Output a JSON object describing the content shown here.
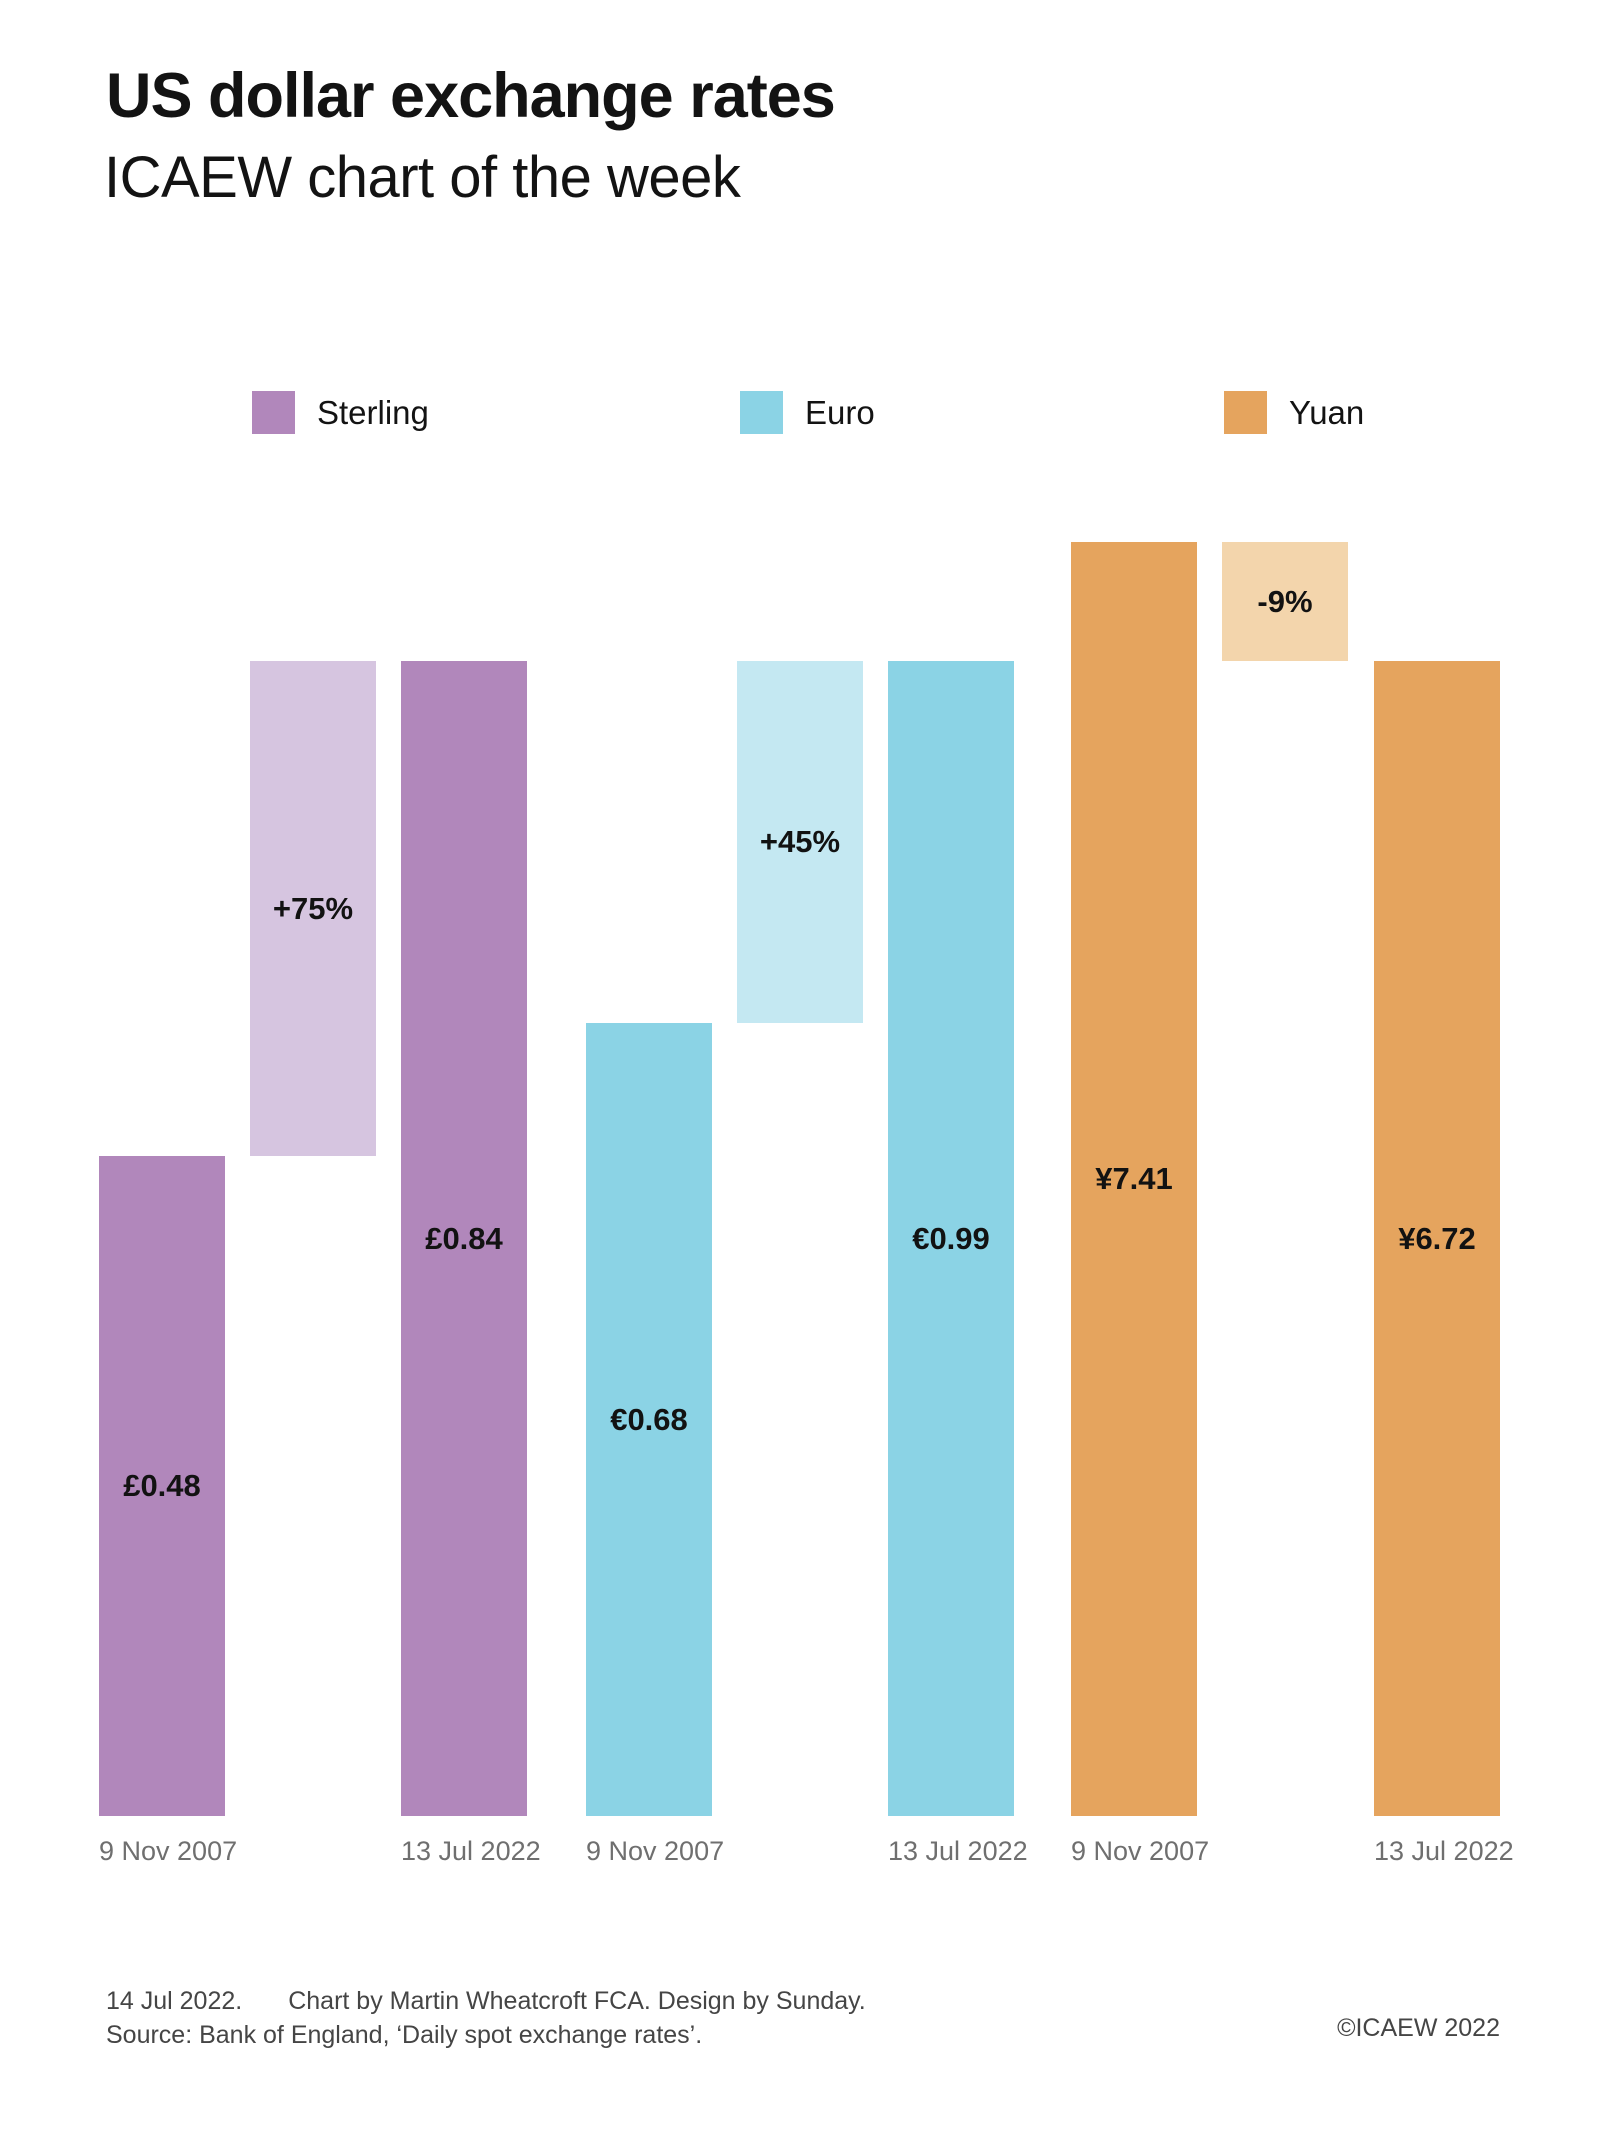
{
  "header": {
    "title": "US dollar exchange rates",
    "subtitle": "ICAEW chart of the week"
  },
  "footer": {
    "date": "14 Jul 2022.",
    "credit": "Chart by Martin Wheatcroft FCA. Design by Sunday.",
    "source": "Source: Bank of England, ‘Daily spot exchange rates’.",
    "copyright": "©ICAEW 2022"
  },
  "colors": {
    "background": "#ffffff",
    "text": "#131313",
    "axis_label_gray": "#6f6f6f",
    "footer_gray": "#454545",
    "sterling": "#b187bb",
    "sterling_light": "#d6c5e0",
    "euro": "#8bd3e5",
    "euro_light": "#c4e8f2",
    "yuan": "#e5a45e",
    "yuan_light": "#f3d5ac"
  },
  "chart_data": {
    "type": "bar",
    "variant": "paired-waterfall",
    "title": "US dollar exchange rates",
    "subtitle": "ICAEW chart of the week",
    "categories": [
      "9 Nov 2007",
      "13 Jul 2022"
    ],
    "legend_position": "top",
    "grid": false,
    "y_axis": "hidden — each currency pair scaled so the 13 Jul 2022 bars are equal height",
    "series": [
      {
        "name": "Sterling",
        "unit": "£",
        "color": "#b187bb",
        "change_color": "#d6c5e0",
        "values": [
          0.48,
          0.84
        ],
        "value_labels": [
          "£0.48",
          "£0.84"
        ],
        "change_percent": 75,
        "change_label": "+75%"
      },
      {
        "name": "Euro",
        "unit": "€",
        "color": "#8bd3e5",
        "change_color": "#c4e8f2",
        "values": [
          0.68,
          0.99
        ],
        "value_labels": [
          "€0.68",
          "€0.99"
        ],
        "change_percent": 45,
        "change_label": "+45%"
      },
      {
        "name": "Yuan",
        "unit": "¥",
        "color": "#e5a45e",
        "change_color": "#f3d5ac",
        "values": [
          7.41,
          6.72
        ],
        "value_labels": [
          "¥7.41",
          "¥6.72"
        ],
        "change_percent": -9,
        "change_label": "-9%"
      }
    ]
  }
}
